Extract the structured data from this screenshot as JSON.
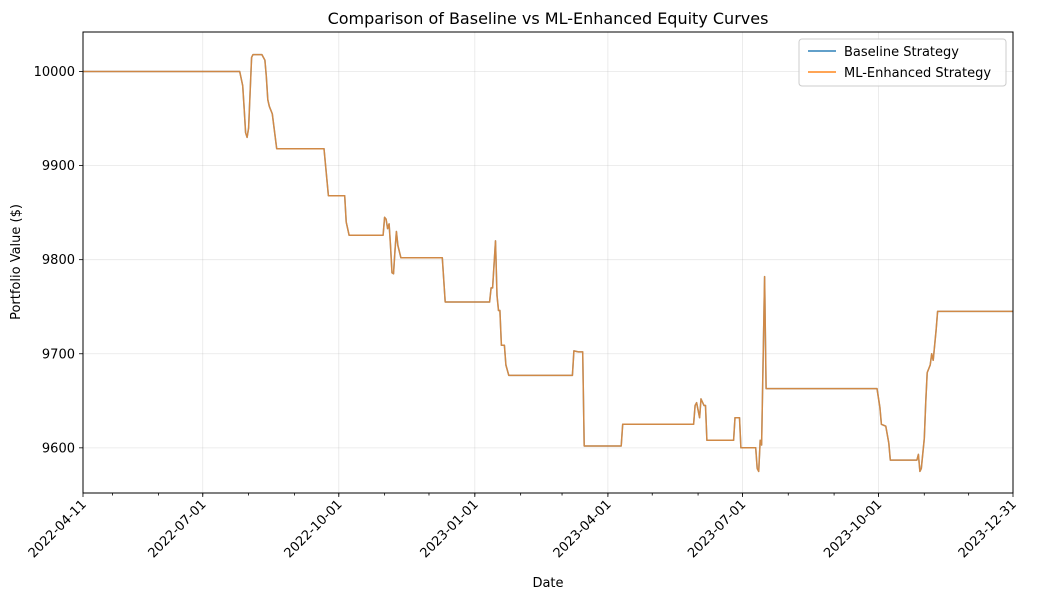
{
  "chart_data": {
    "type": "line",
    "title": "Comparison of Baseline vs ML-Enhanced Equity Curves",
    "xlabel": "Date",
    "ylabel": "Portfolio Value ($)",
    "xlim": [
      "2022-04-11",
      "2023-12-31"
    ],
    "ylim": [
      9552,
      10042
    ],
    "x_ticks": [
      "2022-04-11",
      "2022-07-01",
      "2022-10-01",
      "2023-01-01",
      "2023-04-01",
      "2023-07-01",
      "2023-10-01",
      "2023-12-31"
    ],
    "y_ticks": [
      9600,
      9700,
      9800,
      9900,
      10000
    ],
    "grid": true,
    "legend_position": "top-right",
    "colors": {
      "baseline": "#1f77b4",
      "ml": "#ff7f0e"
    },
    "series": [
      {
        "name": "Baseline Strategy",
        "points": [
          [
            "2022-04-11",
            10000
          ],
          [
            "2022-07-26",
            10000
          ],
          [
            "2022-07-28",
            9985
          ],
          [
            "2022-07-29",
            9960
          ],
          [
            "2022-07-30",
            9935
          ],
          [
            "2022-07-31",
            9930
          ],
          [
            "2022-08-01",
            9940
          ],
          [
            "2022-08-03",
            10015
          ],
          [
            "2022-08-04",
            10018
          ],
          [
            "2022-08-10",
            10018
          ],
          [
            "2022-08-12",
            10012
          ],
          [
            "2022-08-13",
            9995
          ],
          [
            "2022-08-14",
            9970
          ],
          [
            "2022-08-15",
            9963
          ],
          [
            "2022-08-17",
            9955
          ],
          [
            "2022-08-20",
            9918
          ],
          [
            "2022-09-21",
            9918
          ],
          [
            "2022-09-24",
            9868
          ],
          [
            "2022-10-05",
            9868
          ],
          [
            "2022-10-06",
            9840
          ],
          [
            "2022-10-08",
            9826
          ],
          [
            "2022-10-31",
            9826
          ],
          [
            "2022-11-01",
            9845
          ],
          [
            "2022-11-02",
            9843
          ],
          [
            "2022-11-03",
            9833
          ],
          [
            "2022-11-04",
            9838
          ],
          [
            "2022-11-05",
            9815
          ],
          [
            "2022-11-06",
            9786
          ],
          [
            "2022-11-07",
            9785
          ],
          [
            "2022-11-08",
            9810
          ],
          [
            "2022-11-09",
            9830
          ],
          [
            "2022-11-10",
            9815
          ],
          [
            "2022-11-12",
            9802
          ],
          [
            "2022-12-10",
            9802
          ],
          [
            "2022-12-12",
            9755
          ],
          [
            "2023-01-11",
            9755
          ],
          [
            "2023-01-12",
            9770
          ],
          [
            "2023-01-13",
            9770
          ],
          [
            "2023-01-15",
            9820
          ],
          [
            "2023-01-16",
            9762
          ],
          [
            "2023-01-17",
            9746
          ],
          [
            "2023-01-18",
            9746
          ],
          [
            "2023-01-19",
            9709
          ],
          [
            "2023-01-21",
            9709
          ],
          [
            "2023-01-22",
            9688
          ],
          [
            "2023-01-24",
            9677
          ],
          [
            "2023-03-08",
            9677
          ],
          [
            "2023-03-09",
            9703
          ],
          [
            "2023-03-12",
            9702
          ],
          [
            "2023-03-15",
            9702
          ],
          [
            "2023-03-16",
            9602
          ],
          [
            "2023-04-10",
            9602
          ],
          [
            "2023-04-11",
            9625
          ],
          [
            "2023-05-29",
            9625
          ],
          [
            "2023-05-30",
            9645
          ],
          [
            "2023-05-31",
            9648
          ],
          [
            "2023-06-01",
            9640
          ],
          [
            "2023-06-02",
            9632
          ],
          [
            "2023-06-03",
            9652
          ],
          [
            "2023-06-05",
            9645
          ],
          [
            "2023-06-06",
            9645
          ],
          [
            "2023-06-07",
            9608
          ],
          [
            "2023-06-25",
            9608
          ],
          [
            "2023-06-26",
            9632
          ],
          [
            "2023-06-29",
            9632
          ],
          [
            "2023-06-30",
            9600
          ],
          [
            "2023-07-10",
            9600
          ],
          [
            "2023-07-11",
            9578
          ],
          [
            "2023-07-12",
            9575
          ],
          [
            "2023-07-13",
            9608
          ],
          [
            "2023-07-14",
            9603
          ],
          [
            "2023-07-16",
            9782
          ],
          [
            "2023-07-17",
            9663
          ],
          [
            "2023-09-30",
            9663
          ],
          [
            "2023-10-02",
            9643
          ],
          [
            "2023-10-03",
            9625
          ],
          [
            "2023-10-06",
            9623
          ],
          [
            "2023-10-08",
            9605
          ],
          [
            "2023-10-09",
            9587
          ],
          [
            "2023-10-27",
            9587
          ],
          [
            "2023-10-28",
            9593
          ],
          [
            "2023-10-29",
            9575
          ],
          [
            "2023-10-30",
            9578
          ],
          [
            "2023-11-01",
            9610
          ],
          [
            "2023-11-02",
            9650
          ],
          [
            "2023-11-03",
            9680
          ],
          [
            "2023-11-05",
            9688
          ],
          [
            "2023-11-06",
            9700
          ],
          [
            "2023-11-07",
            9693
          ],
          [
            "2023-11-09",
            9725
          ],
          [
            "2023-11-10",
            9745
          ],
          [
            "2023-12-31",
            9745
          ]
        ]
      },
      {
        "name": "ML-Enhanced Strategy",
        "points": [
          [
            "2022-04-11",
            10000
          ],
          [
            "2022-07-26",
            10000
          ],
          [
            "2022-07-28",
            9985
          ],
          [
            "2022-07-29",
            9960
          ],
          [
            "2022-07-30",
            9935
          ],
          [
            "2022-07-31",
            9930
          ],
          [
            "2022-08-01",
            9940
          ],
          [
            "2022-08-03",
            10015
          ],
          [
            "2022-08-04",
            10018
          ],
          [
            "2022-08-10",
            10018
          ],
          [
            "2022-08-12",
            10012
          ],
          [
            "2022-08-13",
            9995
          ],
          [
            "2022-08-14",
            9970
          ],
          [
            "2022-08-15",
            9963
          ],
          [
            "2022-08-17",
            9955
          ],
          [
            "2022-08-20",
            9918
          ],
          [
            "2022-09-21",
            9918
          ],
          [
            "2022-09-24",
            9868
          ],
          [
            "2022-10-05",
            9868
          ],
          [
            "2022-10-06",
            9840
          ],
          [
            "2022-10-08",
            9826
          ],
          [
            "2022-10-31",
            9826
          ],
          [
            "2022-11-01",
            9845
          ],
          [
            "2022-11-02",
            9843
          ],
          [
            "2022-11-03",
            9833
          ],
          [
            "2022-11-04",
            9838
          ],
          [
            "2022-11-05",
            9815
          ],
          [
            "2022-11-06",
            9786
          ],
          [
            "2022-11-07",
            9785
          ],
          [
            "2022-11-08",
            9810
          ],
          [
            "2022-11-09",
            9830
          ],
          [
            "2022-11-10",
            9815
          ],
          [
            "2022-11-12",
            9802
          ],
          [
            "2022-12-10",
            9802
          ],
          [
            "2022-12-12",
            9755
          ],
          [
            "2023-01-11",
            9755
          ],
          [
            "2023-01-12",
            9770
          ],
          [
            "2023-01-13",
            9770
          ],
          [
            "2023-01-15",
            9820
          ],
          [
            "2023-01-16",
            9762
          ],
          [
            "2023-01-17",
            9746
          ],
          [
            "2023-01-18",
            9746
          ],
          [
            "2023-01-19",
            9709
          ],
          [
            "2023-01-21",
            9709
          ],
          [
            "2023-01-22",
            9688
          ],
          [
            "2023-01-24",
            9677
          ],
          [
            "2023-03-08",
            9677
          ],
          [
            "2023-03-09",
            9703
          ],
          [
            "2023-03-12",
            9702
          ],
          [
            "2023-03-15",
            9702
          ],
          [
            "2023-03-16",
            9602
          ],
          [
            "2023-04-10",
            9602
          ],
          [
            "2023-04-11",
            9625
          ],
          [
            "2023-05-29",
            9625
          ],
          [
            "2023-05-30",
            9645
          ],
          [
            "2023-05-31",
            9648
          ],
          [
            "2023-06-01",
            9640
          ],
          [
            "2023-06-02",
            9632
          ],
          [
            "2023-06-03",
            9652
          ],
          [
            "2023-06-05",
            9645
          ],
          [
            "2023-06-06",
            9645
          ],
          [
            "2023-06-07",
            9608
          ],
          [
            "2023-06-25",
            9608
          ],
          [
            "2023-06-26",
            9632
          ],
          [
            "2023-06-29",
            9632
          ],
          [
            "2023-06-30",
            9600
          ],
          [
            "2023-07-10",
            9600
          ],
          [
            "2023-07-11",
            9578
          ],
          [
            "2023-07-12",
            9575
          ],
          [
            "2023-07-13",
            9608
          ],
          [
            "2023-07-14",
            9603
          ],
          [
            "2023-07-16",
            9782
          ],
          [
            "2023-07-17",
            9663
          ],
          [
            "2023-09-30",
            9663
          ],
          [
            "2023-10-02",
            9643
          ],
          [
            "2023-10-03",
            9625
          ],
          [
            "2023-10-06",
            9623
          ],
          [
            "2023-10-08",
            9605
          ],
          [
            "2023-10-09",
            9587
          ],
          [
            "2023-10-27",
            9587
          ],
          [
            "2023-10-28",
            9593
          ],
          [
            "2023-10-29",
            9575
          ],
          [
            "2023-10-30",
            9578
          ],
          [
            "2023-11-01",
            9610
          ],
          [
            "2023-11-02",
            9650
          ],
          [
            "2023-11-03",
            9680
          ],
          [
            "2023-11-05",
            9688
          ],
          [
            "2023-11-06",
            9700
          ],
          [
            "2023-11-07",
            9693
          ],
          [
            "2023-11-09",
            9725
          ],
          [
            "2023-11-10",
            9745
          ],
          [
            "2023-12-31",
            9745
          ]
        ]
      }
    ]
  }
}
